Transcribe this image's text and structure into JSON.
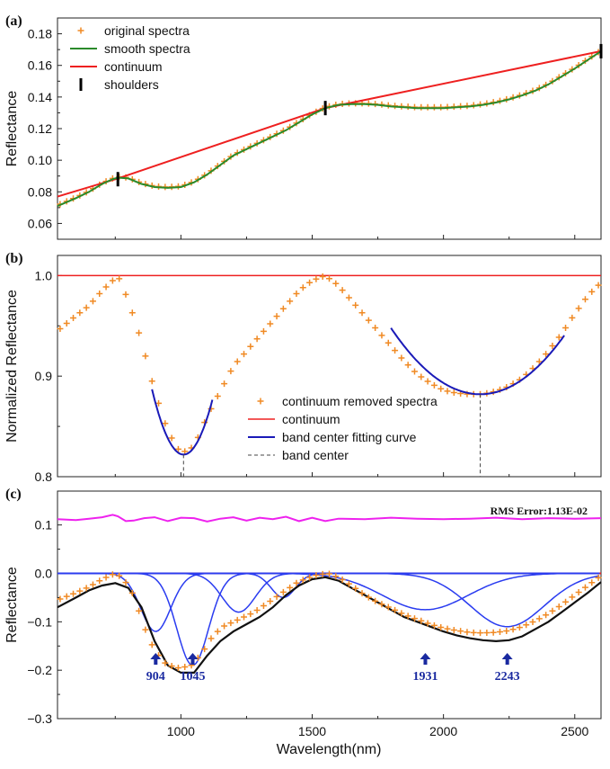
{
  "figure": {
    "xlabel": "Wavelength(nm)",
    "xlim": [
      530,
      2600
    ],
    "xticks": [
      1000,
      1500,
      2000,
      2500
    ]
  },
  "colors": {
    "orig": "#f08a24",
    "smooth": "#2a8a2a",
    "cont": "#ee2020",
    "fit": "#1a1ab8",
    "gauss": "#2a3cf0",
    "env": "#111111",
    "resid": "#ee22ee",
    "arrow": "#1a2aa0",
    "center": "#444444"
  },
  "chart_data": [
    {
      "panel": "(a)",
      "type": "line",
      "ylabel": "Reflectance",
      "ylim": [
        0.05,
        0.19
      ],
      "yticks": [
        0.06,
        0.08,
        0.1,
        0.12,
        0.14,
        0.16,
        0.18
      ],
      "ytick_labels": [
        "0.06",
        "0.08",
        "0.10",
        "0.12",
        "0.14",
        "0.16",
        "0.18"
      ],
      "legend": [
        "original spectra",
        "smooth spectra",
        "continuum",
        "shoulders"
      ],
      "smooth": {
        "x": [
          530,
          600,
          650,
          700,
          740,
          760,
          800,
          850,
          900,
          950,
          1000,
          1050,
          1100,
          1150,
          1200,
          1250,
          1300,
          1350,
          1400,
          1450,
          1500,
          1550,
          1600,
          1650,
          1700,
          1750,
          1800,
          1850,
          1900,
          1950,
          2000,
          2050,
          2100,
          2150,
          2200,
          2250,
          2300,
          2350,
          2400,
          2450,
          2500,
          2550,
          2600
        ],
        "y": [
          0.071,
          0.076,
          0.08,
          0.085,
          0.088,
          0.089,
          0.0885,
          0.085,
          0.083,
          0.0825,
          0.083,
          0.086,
          0.091,
          0.097,
          0.103,
          0.107,
          0.111,
          0.115,
          0.119,
          0.124,
          0.129,
          0.133,
          0.135,
          0.1355,
          0.1355,
          0.135,
          0.134,
          0.1335,
          0.133,
          0.133,
          0.133,
          0.1335,
          0.134,
          0.135,
          0.1365,
          0.1385,
          0.141,
          0.144,
          0.148,
          0.153,
          0.158,
          0.1635,
          0.169
        ]
      },
      "continuum": {
        "x": [
          530,
          760,
          1550,
          2600
        ],
        "y": [
          0.077,
          0.0885,
          0.133,
          0.169
        ]
      },
      "shoulders": {
        "x": [
          760,
          1550,
          2600
        ],
        "y": [
          0.088,
          0.133,
          0.169
        ]
      }
    },
    {
      "panel": "(b)",
      "type": "scatter",
      "ylabel": "Normalized Reflectance",
      "ylim": [
        0.8,
        1.02
      ],
      "yticks": [
        0.8,
        0.9,
        1.0
      ],
      "ytick_labels": [
        "0.8",
        "0.9",
        "1.0"
      ],
      "legend": [
        "continuum removed spectra",
        "continuum",
        "band center fitting curve",
        "band center"
      ],
      "removed": {
        "x": [
          530,
          600,
          650,
          700,
          740,
          760,
          800,
          850,
          900,
          950,
          1000,
          1050,
          1100,
          1150,
          1200,
          1250,
          1300,
          1350,
          1400,
          1450,
          1500,
          1550,
          1600,
          1650,
          1700,
          1750,
          1800,
          1850,
          1900,
          1950,
          2000,
          2050,
          2100,
          2150,
          2200,
          2250,
          2300,
          2350,
          2400,
          2450,
          2500,
          2550,
          2600
        ],
        "y": [
          0.945,
          0.96,
          0.97,
          0.985,
          0.995,
          1.0,
          0.975,
          0.935,
          0.885,
          0.845,
          0.823,
          0.83,
          0.86,
          0.885,
          0.91,
          0.925,
          0.94,
          0.955,
          0.97,
          0.985,
          0.995,
          1.0,
          0.99,
          0.975,
          0.96,
          0.945,
          0.93,
          0.915,
          0.902,
          0.893,
          0.886,
          0.883,
          0.882,
          0.882,
          0.885,
          0.89,
          0.898,
          0.91,
          0.925,
          0.942,
          0.962,
          0.98,
          0.993
        ]
      },
      "continuum_level": 1.0,
      "fit_curves": [
        {
          "x_range": [
            890,
            1120
          ],
          "center": 1010,
          "min": 0.822,
          "curv": 4.5e-06
        },
        {
          "x_range": [
            1800,
            2460
          ],
          "center": 2140,
          "min": 0.882,
          "curv": 5.7e-07
        }
      ],
      "band_centers": [
        1010,
        2140
      ]
    },
    {
      "panel": "(c)",
      "type": "line",
      "ylabel": "Reflectance",
      "ylim": [
        -0.3,
        0.17
      ],
      "yticks": [
        -0.3,
        -0.2,
        -0.1,
        0.0,
        0.1
      ],
      "ytick_labels": [
        "−0.3",
        "−0.2",
        "−0.1",
        "0.0",
        "0.1"
      ],
      "rms_text": "RMS Error:1.13E-02",
      "residual": {
        "x": [
          530,
          600,
          650,
          700,
          740,
          760,
          790,
          820,
          860,
          900,
          950,
          1000,
          1050,
          1100,
          1150,
          1200,
          1250,
          1300,
          1350,
          1400,
          1450,
          1500,
          1550,
          1600,
          1700,
          1800,
          1900,
          2000,
          2100,
          2200,
          2300,
          2400,
          2500,
          2600
        ],
        "y": [
          0.112,
          0.11,
          0.113,
          0.116,
          0.121,
          0.118,
          0.108,
          0.109,
          0.114,
          0.116,
          0.108,
          0.115,
          0.114,
          0.107,
          0.113,
          0.116,
          0.109,
          0.115,
          0.112,
          0.117,
          0.108,
          0.115,
          0.108,
          0.113,
          0.112,
          0.115,
          0.113,
          0.112,
          0.113,
          0.115,
          0.112,
          0.114,
          0.113,
          0.114
        ]
      },
      "zero_line": 0.0,
      "gaussians": [
        {
          "center": 904,
          "depth": -0.12,
          "width": 80
        },
        {
          "center": 1045,
          "depth": -0.19,
          "width": 85
        },
        {
          "center": 1220,
          "depth": -0.08,
          "width": 90
        },
        {
          "center": 1390,
          "depth": -0.05,
          "width": 65
        },
        {
          "center": 1931,
          "depth": -0.075,
          "width": 230
        },
        {
          "center": 2243,
          "depth": -0.11,
          "width": 200
        }
      ],
      "envelope": {
        "x": [
          530,
          600,
          650,
          700,
          750,
          800,
          850,
          900,
          950,
          1000,
          1050,
          1100,
          1150,
          1200,
          1250,
          1300,
          1350,
          1400,
          1450,
          1500,
          1550,
          1600,
          1650,
          1700,
          1750,
          1800,
          1850,
          1900,
          1950,
          2000,
          2050,
          2100,
          2150,
          2200,
          2250,
          2300,
          2350,
          2400,
          2450,
          2500,
          2550,
          2600
        ],
        "y": [
          -0.07,
          -0.05,
          -0.035,
          -0.025,
          -0.02,
          -0.03,
          -0.07,
          -0.14,
          -0.19,
          -0.205,
          -0.205,
          -0.17,
          -0.14,
          -0.12,
          -0.105,
          -0.09,
          -0.07,
          -0.045,
          -0.025,
          -0.012,
          -0.008,
          -0.015,
          -0.03,
          -0.045,
          -0.06,
          -0.075,
          -0.09,
          -0.1,
          -0.11,
          -0.12,
          -0.128,
          -0.134,
          -0.138,
          -0.14,
          -0.138,
          -0.13,
          -0.115,
          -0.1,
          -0.08,
          -0.06,
          -0.04,
          -0.018
        ]
      },
      "original": {
        "x": [
          530,
          600,
          650,
          700,
          750,
          780,
          820,
          860,
          900,
          940,
          980,
          1000,
          1040,
          1080,
          1120,
          1160,
          1200,
          1240,
          1280,
          1320,
          1360,
          1400,
          1440,
          1480,
          1520,
          1560,
          1600,
          1650,
          1700,
          1750,
          1800,
          1850,
          1900,
          1950,
          2000,
          2050,
          2100,
          2150,
          2200,
          2250,
          2300,
          2350,
          2400,
          2450,
          2500,
          2550,
          2600
        ],
        "y": [
          -0.055,
          -0.04,
          -0.028,
          -0.012,
          0.0,
          -0.01,
          -0.045,
          -0.11,
          -0.16,
          -0.185,
          -0.195,
          -0.195,
          -0.19,
          -0.165,
          -0.13,
          -0.11,
          -0.1,
          -0.09,
          -0.08,
          -0.065,
          -0.05,
          -0.035,
          -0.02,
          -0.01,
          -0.003,
          0.0,
          -0.008,
          -0.025,
          -0.045,
          -0.06,
          -0.072,
          -0.085,
          -0.095,
          -0.105,
          -0.113,
          -0.118,
          -0.122,
          -0.123,
          -0.122,
          -0.118,
          -0.11,
          -0.098,
          -0.083,
          -0.065,
          -0.045,
          -0.025,
          -0.005
        ]
      },
      "annotations": [
        {
          "label": "904",
          "x": 904
        },
        {
          "label": "1045",
          "x": 1045
        },
        {
          "label": "1931",
          "x": 1931
        },
        {
          "label": "2243",
          "x": 2243
        }
      ]
    }
  ]
}
